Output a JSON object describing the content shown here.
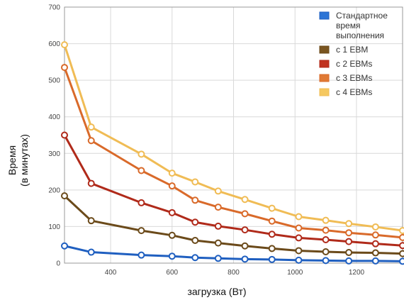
{
  "chart_data": {
    "type": "line",
    "xlabel": "загрузка (Вт)",
    "ylabel": [
      "Время",
      "(в минутах)"
    ],
    "xlim": [
      250,
      1350
    ],
    "ylim": [
      0,
      700
    ],
    "x_ticks": [
      400,
      600,
      800,
      1000,
      1200
    ],
    "y_ticks": [
      0,
      100,
      200,
      300,
      400,
      500,
      600,
      700
    ],
    "grid": true,
    "legend_position": "top-right",
    "x": [
      250,
      337,
      500,
      600,
      675,
      750,
      837,
      925,
      1012,
      1100,
      1175,
      1262,
      1350
    ],
    "series": [
      {
        "name": [
          "Стандартное",
          "время",
          "выполнения"
        ],
        "color": "#1f5fc0",
        "fill": "#2c74d6",
        "values": [
          47,
          30,
          22,
          19,
          15,
          13,
          11,
          10,
          8,
          7,
          6,
          6,
          5
        ]
      },
      {
        "name": [
          "с 1 EBM"
        ],
        "color": "#6b4a1a",
        "fill": "#7a5520",
        "values": [
          184,
          116,
          89,
          76,
          62,
          55,
          47,
          40,
          34,
          31,
          29,
          28,
          26
        ]
      },
      {
        "name": [
          "с 2 EBMs"
        ],
        "color": "#b02a1a",
        "fill": "#c0321f",
        "values": [
          350,
          218,
          165,
          138,
          112,
          101,
          91,
          79,
          69,
          64,
          59,
          53,
          48
        ]
      },
      {
        "name": [
          "с 3 EBMs"
        ],
        "color": "#d96a2a",
        "fill": "#e07a35",
        "values": [
          535,
          335,
          253,
          211,
          172,
          153,
          135,
          115,
          96,
          90,
          83,
          77,
          70
        ]
      },
      {
        "name": [
          "с 4 EBMs"
        ],
        "color": "#f0bc55",
        "fill": "#f5c860",
        "values": [
          597,
          372,
          298,
          246,
          222,
          197,
          174,
          150,
          127,
          117,
          108,
          99,
          89
        ]
      }
    ]
  }
}
